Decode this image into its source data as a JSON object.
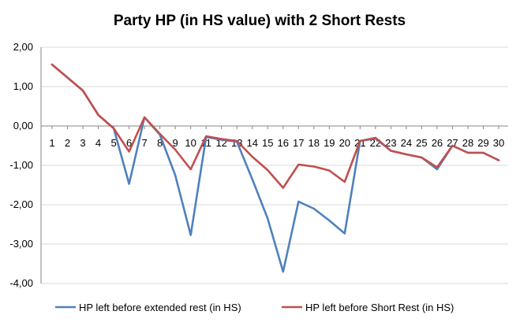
{
  "chart_data": {
    "type": "line",
    "title": "Party HP (in HS value) with 2 Short Rests",
    "xlabel": "",
    "ylabel": "",
    "categories": [
      "1",
      "2",
      "3",
      "4",
      "5",
      "6",
      "7",
      "8",
      "9",
      "10",
      "11",
      "12",
      "13",
      "14",
      "15",
      "16",
      "17",
      "18",
      "19",
      "20",
      "21",
      "22",
      "23",
      "24",
      "25",
      "26",
      "27",
      "28",
      "29",
      "30"
    ],
    "ylim": [
      -4,
      2
    ],
    "yticks": [
      2,
      1,
      0,
      -1,
      -2,
      -3,
      -4
    ],
    "ytick_labels": [
      "2,00",
      "1,00",
      "0,00",
      "-1,00",
      "-2,00",
      "-3,00",
      "-4,00"
    ],
    "grid": true,
    "legend_position": "bottom",
    "series": [
      {
        "name": "HP left before extended rest (in HS)",
        "color": "#4F81BD",
        "values": [
          1.56,
          1.23,
          0.9,
          0.28,
          -0.06,
          -1.47,
          0.22,
          -0.22,
          -1.25,
          -2.77,
          -0.28,
          -0.35,
          -0.4,
          -1.35,
          -2.35,
          -3.7,
          -1.92,
          -2.1,
          -2.4,
          -2.73,
          -0.38,
          -0.32,
          -0.63,
          -0.72,
          -0.8,
          -1.1,
          -0.5,
          -0.68,
          -0.68,
          -0.87
        ]
      },
      {
        "name": "HP left before Short Rest (in HS)",
        "color": "#C0504D",
        "values": [
          1.56,
          1.23,
          0.9,
          0.28,
          -0.06,
          -0.65,
          0.22,
          -0.2,
          -0.6,
          -1.1,
          -0.26,
          -0.33,
          -0.38,
          -0.78,
          -1.12,
          -1.57,
          -0.98,
          -1.03,
          -1.13,
          -1.42,
          -0.38,
          -0.3,
          -0.63,
          -0.72,
          -0.8,
          -1.05,
          -0.5,
          -0.68,
          -0.68,
          -0.87
        ]
      }
    ]
  }
}
